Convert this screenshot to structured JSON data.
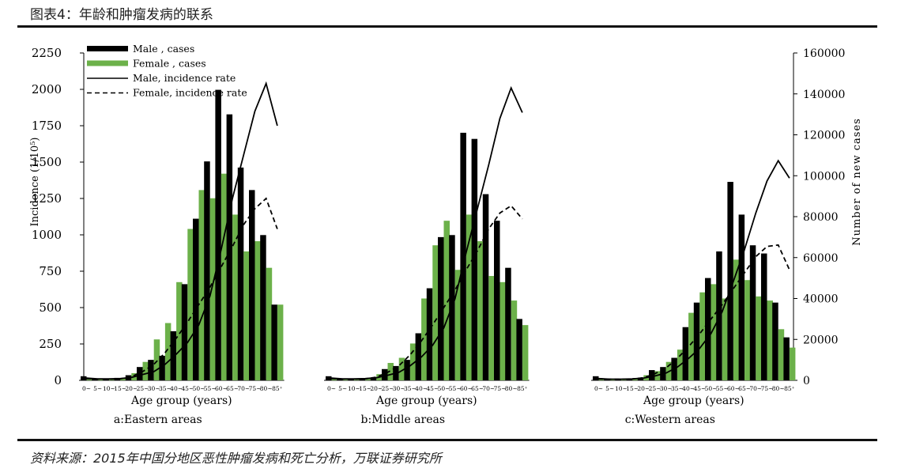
{
  "figure_title": "图表4：年龄和肿瘤发病的联系",
  "source_note": "资料来源：2015年中国分地区恶性肿瘤发病和死亡分析，万联证券研究所",
  "colors": {
    "male": "#000000",
    "female": "#6cb14a",
    "rule": "#111111"
  },
  "chart_data": {
    "type": "bar+line",
    "x_axis_title": "Age   group (years)",
    "y_left_label": "Incidence  (1/10⁵)",
    "y_right_label": "Number  of  new  cases",
    "y_left_ticks": [
      "0",
      "250",
      "500",
      "750",
      "1000",
      "1250",
      "1500",
      "1750",
      "2000",
      "2250"
    ],
    "y_right_ticks": [
      "0",
      "20000",
      "40000",
      "60000",
      "80000",
      "100000",
      "120000",
      "140000",
      "160000"
    ],
    "ylim_left": [
      0,
      2250
    ],
    "ylim_right": [
      0,
      160000
    ],
    "grid": false,
    "legend_position": "top-left",
    "legend": [
      {
        "label": "Male , cases",
        "kind": "male-bar"
      },
      {
        "label": "Female , cases",
        "kind": "female-bar"
      },
      {
        "label": "Male,  incidence  rate",
        "kind": "male-line"
      },
      {
        "label": "Female,  incidence  rate",
        "kind": "female-line"
      }
    ],
    "categories": [
      "0~",
      "5~",
      "10~",
      "15~",
      "20~",
      "25~",
      "30~",
      "35~",
      "40~",
      "45~",
      "50~",
      "55~",
      "60~",
      "65~",
      "70~",
      "75~",
      "80~",
      "85⁺"
    ],
    "panels": [
      {
        "label": "a:Eastern        areas",
        "male_cases": [
          2000,
          800,
          900,
          1200,
          2500,
          6500,
          10000,
          12000,
          24000,
          47000,
          79000,
          107000,
          142000,
          130000,
          104000,
          93000,
          71000,
          37000
        ],
        "female_cases": [
          1000,
          700,
          800,
          1100,
          3500,
          9000,
          20000,
          28000,
          48000,
          74000,
          93000,
          89000,
          101000,
          81000,
          63000,
          68000,
          55000,
          37000
        ],
        "male_rate": [
          15,
          10,
          10,
          12,
          20,
          40,
          60,
          110,
          180,
          260,
          380,
          580,
          900,
          1250,
          1550,
          1850,
          2040,
          1750
        ],
        "female_rate": [
          12,
          8,
          8,
          10,
          25,
          60,
          110,
          190,
          290,
          400,
          520,
          640,
          780,
          920,
          1070,
          1180,
          1250,
          1040
        ]
      },
      {
        "label": "b:Middle        areas",
        "male_cases": [
          2000,
          800,
          800,
          900,
          1300,
          5500,
          7000,
          10000,
          23000,
          45000,
          70000,
          71000,
          121000,
          118000,
          91000,
          78000,
          55000,
          30000
        ],
        "female_cases": [
          1000,
          700,
          800,
          1000,
          3000,
          8500,
          11000,
          18000,
          40000,
          66000,
          78000,
          54000,
          81000,
          68000,
          51000,
          48000,
          39000,
          27000
        ],
        "male_rate": [
          15,
          10,
          10,
          12,
          18,
          35,
          55,
          100,
          160,
          240,
          360,
          560,
          880,
          1180,
          1480,
          1800,
          2010,
          1840
        ],
        "female_rate": [
          12,
          8,
          8,
          10,
          22,
          55,
          100,
          175,
          270,
          380,
          500,
          620,
          760,
          890,
          1040,
          1150,
          1200,
          1110
        ]
      },
      {
        "label": "c:Western        areas",
        "male_cases": [
          2000,
          800,
          800,
          900,
          1300,
          5000,
          6500,
          11000,
          26000,
          38000,
          50000,
          63000,
          97000,
          81000,
          66000,
          62000,
          38000,
          21000
        ],
        "female_cases": [
          1000,
          700,
          800,
          1000,
          2500,
          4500,
          9000,
          15000,
          33000,
          43000,
          47000,
          40000,
          59000,
          49000,
          41000,
          39000,
          25000,
          16000
        ],
        "male_rate": [
          12,
          8,
          8,
          10,
          16,
          30,
          50,
          90,
          150,
          220,
          320,
          470,
          680,
          900,
          1150,
          1370,
          1510,
          1390
        ],
        "female_rate": [
          10,
          7,
          7,
          9,
          18,
          45,
          85,
          150,
          230,
          320,
          420,
          520,
          630,
          740,
          850,
          920,
          930,
          760
        ]
      }
    ]
  }
}
